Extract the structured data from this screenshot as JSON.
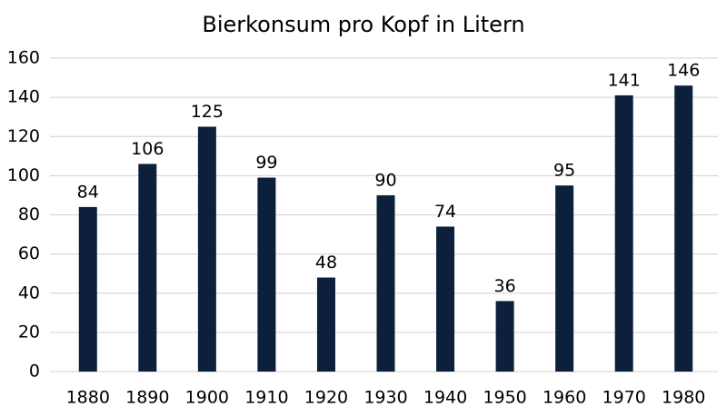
{
  "chart_data": {
    "type": "bar",
    "title": "Bierkonsum pro Kopf in Litern",
    "categories": [
      "1880",
      "1890",
      "1900",
      "1910",
      "1920",
      "1930",
      "1940",
      "1950",
      "1960",
      "1970",
      "1980"
    ],
    "values": [
      84,
      106,
      125,
      99,
      48,
      90,
      74,
      36,
      95,
      141,
      146
    ],
    "color": "#0c1f3b",
    "ylim": [
      0,
      160
    ],
    "yticks": [
      0,
      20,
      40,
      60,
      80,
      100,
      120,
      140,
      160
    ],
    "grid": true
  }
}
